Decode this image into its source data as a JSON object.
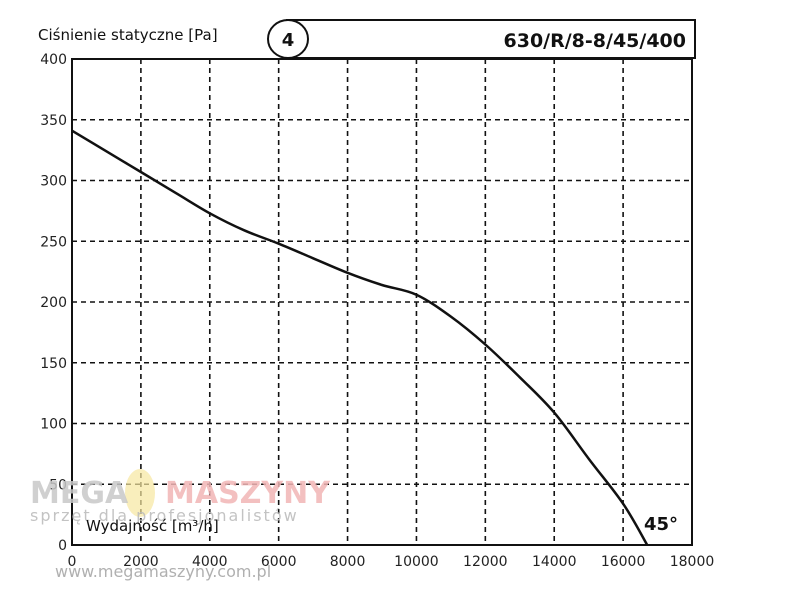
{
  "chart_data": {
    "type": "line",
    "title": "630/R/8-8/45/400",
    "badge": "4",
    "ylabel": "Ciśnienie statyczne [Pa]",
    "xlabel": "Wydajność [m³/h]",
    "xlim": [
      0,
      18000
    ],
    "ylim": [
      0,
      400
    ],
    "xticks": [
      0,
      2000,
      4000,
      6000,
      8000,
      10000,
      12000,
      14000,
      16000,
      18000
    ],
    "yticks": [
      0,
      50,
      100,
      150,
      200,
      250,
      300,
      350,
      400
    ],
    "grid": true,
    "annotation": "45°",
    "series": [
      {
        "x": [
          0,
          1000,
          2000,
          3000,
          4000,
          5000,
          6000,
          7000,
          8000,
          9000,
          10000,
          11000,
          12000,
          13000,
          14000,
          15000,
          16000,
          16700
        ],
        "y": [
          341,
          324,
          307,
          290,
          273,
          259,
          248,
          236,
          224,
          214,
          206,
          188,
          165,
          138,
          109,
          71,
          34,
          0
        ]
      }
    ]
  },
  "watermark": {
    "brand_left": "MEGA",
    "brand_right": "MASZYNY",
    "tagline": "sprzęt dla profesjonalistów",
    "url": "www.megamaszyny.com.pl",
    "colors": {
      "brand_left": "#c8c8c8",
      "brand_right": "#f2b6b6",
      "logo": "#f7e7a0"
    }
  }
}
